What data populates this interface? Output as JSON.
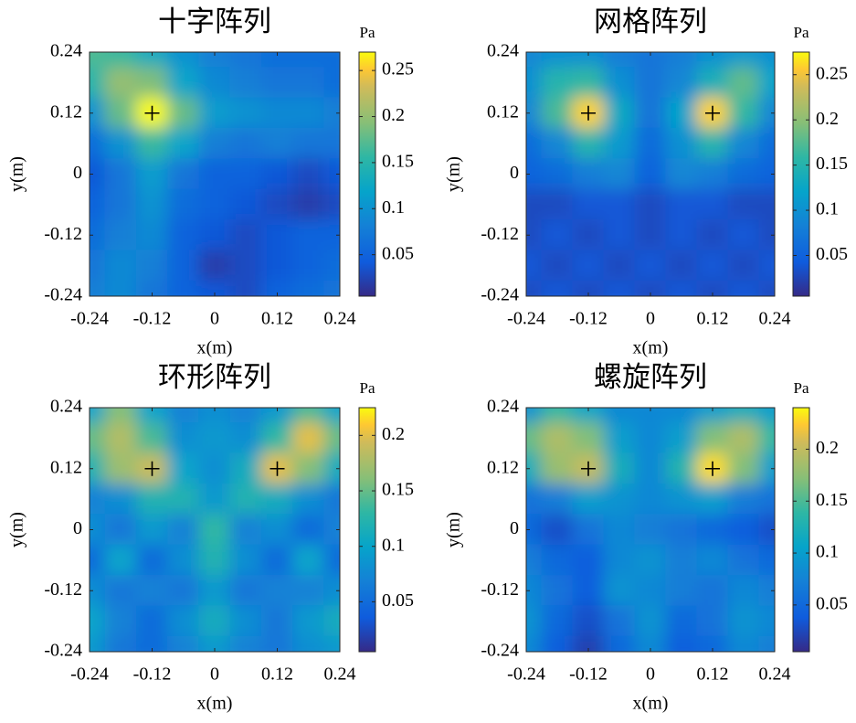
{
  "chart_data": [
    {
      "type": "heatmap",
      "title": "十字阵列",
      "xlabel": "x(m)",
      "ylabel": "y(m)",
      "colorbar_label": "Pa",
      "colormap": "parula",
      "xlim": [
        -0.24,
        0.24
      ],
      "ylim": [
        -0.24,
        0.24
      ],
      "xticks": [
        -0.24,
        -0.12,
        0,
        0.12,
        0.24
      ],
      "yticks": [
        -0.24,
        -0.12,
        0,
        0.12,
        0.24
      ],
      "clim": [
        0.005,
        0.27
      ],
      "cticks": [
        0.05,
        0.1,
        0.15,
        0.2,
        0.25
      ],
      "x": [
        -0.24,
        -0.18,
        -0.12,
        -0.06,
        0,
        0.06,
        0.12,
        0.18,
        0.24
      ],
      "y": [
        0.24,
        0.18,
        0.12,
        0.06,
        0,
        -0.06,
        -0.12,
        -0.18,
        -0.24
      ],
      "z": [
        [
          0.17,
          0.16,
          0.13,
          0.1,
          0.08,
          0.07,
          0.06,
          0.06,
          0.06
        ],
        [
          0.15,
          0.2,
          0.19,
          0.12,
          0.09,
          0.08,
          0.07,
          0.07,
          0.06
        ],
        [
          0.1,
          0.18,
          0.27,
          0.18,
          0.11,
          0.1,
          0.09,
          0.09,
          0.08
        ],
        [
          0.06,
          0.1,
          0.16,
          0.12,
          0.08,
          0.07,
          0.08,
          0.07,
          0.07
        ],
        [
          0.04,
          0.07,
          0.11,
          0.07,
          0.05,
          0.05,
          0.04,
          0.03,
          0.04
        ],
        [
          0.05,
          0.07,
          0.1,
          0.06,
          0.05,
          0.04,
          0.03,
          0.02,
          0.03
        ],
        [
          0.06,
          0.08,
          0.09,
          0.05,
          0.04,
          0.03,
          0.04,
          0.05,
          0.05
        ],
        [
          0.07,
          0.09,
          0.08,
          0.05,
          0.02,
          0.03,
          0.04,
          0.05,
          0.06
        ],
        [
          0.08,
          0.09,
          0.07,
          0.05,
          0.04,
          0.03,
          0.05,
          0.06,
          0.07
        ]
      ],
      "sources": {
        "x": [
          -0.12
        ],
        "y": [
          0.12
        ]
      }
    },
    {
      "type": "heatmap",
      "title": "网格阵列",
      "xlabel": "x(m)",
      "ylabel": "y(m)",
      "colorbar_label": "Pa",
      "colormap": "parula",
      "xlim": [
        -0.24,
        0.24
      ],
      "ylim": [
        -0.24,
        0.24
      ],
      "xticks": [
        -0.24,
        -0.12,
        0,
        0.12,
        0.24
      ],
      "yticks": [
        -0.24,
        -0.12,
        0,
        0.12,
        0.24
      ],
      "clim": [
        0.005,
        0.275
      ],
      "cticks": [
        0.05,
        0.1,
        0.15,
        0.2,
        0.25
      ],
      "x": [
        -0.24,
        -0.18,
        -0.12,
        -0.06,
        0,
        0.06,
        0.12,
        0.18,
        0.24
      ],
      "y": [
        0.24,
        0.18,
        0.12,
        0.06,
        0,
        -0.06,
        -0.12,
        -0.18,
        -0.24
      ],
      "z": [
        [
          0.09,
          0.1,
          0.1,
          0.08,
          0.07,
          0.08,
          0.1,
          0.11,
          0.1
        ],
        [
          0.1,
          0.15,
          0.16,
          0.1,
          0.07,
          0.09,
          0.14,
          0.18,
          0.12
        ],
        [
          0.09,
          0.17,
          0.26,
          0.13,
          0.07,
          0.12,
          0.26,
          0.16,
          0.09
        ],
        [
          0.06,
          0.09,
          0.15,
          0.11,
          0.06,
          0.1,
          0.15,
          0.09,
          0.06
        ],
        [
          0.05,
          0.06,
          0.08,
          0.09,
          0.05,
          0.09,
          0.08,
          0.06,
          0.05
        ],
        [
          0.03,
          0.03,
          0.04,
          0.04,
          0.03,
          0.04,
          0.04,
          0.03,
          0.03
        ],
        [
          0.03,
          0.04,
          0.03,
          0.04,
          0.03,
          0.04,
          0.03,
          0.04,
          0.03
        ],
        [
          0.04,
          0.03,
          0.04,
          0.03,
          0.04,
          0.03,
          0.04,
          0.03,
          0.04
        ],
        [
          0.03,
          0.04,
          0.03,
          0.04,
          0.03,
          0.04,
          0.03,
          0.04,
          0.03
        ]
      ],
      "sources": {
        "x": [
          -0.12,
          0.12
        ],
        "y": [
          0.12,
          0.12
        ]
      }
    },
    {
      "type": "heatmap",
      "title": "环形阵列",
      "xlabel": "x(m)",
      "ylabel": "y(m)",
      "colorbar_label": "Pa",
      "colormap": "parula",
      "xlim": [
        -0.24,
        0.24
      ],
      "ylim": [
        -0.24,
        0.24
      ],
      "xticks": [
        -0.24,
        -0.12,
        0,
        0.12,
        0.24
      ],
      "yticks": [
        -0.24,
        -0.12,
        0,
        0.12,
        0.24
      ],
      "clim": [
        0.005,
        0.225
      ],
      "cticks": [
        0.05,
        0.1,
        0.15,
        0.2
      ],
      "x": [
        -0.24,
        -0.18,
        -0.12,
        -0.06,
        0,
        0.06,
        0.12,
        0.18,
        0.24
      ],
      "y": [
        0.24,
        0.18,
        0.12,
        0.06,
        0,
        -0.06,
        -0.12,
        -0.18,
        -0.24
      ],
      "z": [
        [
          0.1,
          0.16,
          0.1,
          0.07,
          0.08,
          0.07,
          0.09,
          0.14,
          0.1
        ],
        [
          0.15,
          0.18,
          0.14,
          0.08,
          0.09,
          0.08,
          0.13,
          0.2,
          0.15
        ],
        [
          0.12,
          0.17,
          0.19,
          0.1,
          0.08,
          0.11,
          0.2,
          0.16,
          0.11
        ],
        [
          0.07,
          0.08,
          0.12,
          0.12,
          0.09,
          0.12,
          0.11,
          0.08,
          0.06
        ],
        [
          0.08,
          0.06,
          0.09,
          0.07,
          0.13,
          0.07,
          0.08,
          0.05,
          0.07
        ],
        [
          0.05,
          0.1,
          0.05,
          0.08,
          0.12,
          0.08,
          0.05,
          0.1,
          0.05
        ],
        [
          0.08,
          0.06,
          0.07,
          0.06,
          0.09,
          0.06,
          0.07,
          0.07,
          0.08
        ],
        [
          0.1,
          0.07,
          0.05,
          0.08,
          0.11,
          0.08,
          0.06,
          0.09,
          0.11
        ],
        [
          0.09,
          0.06,
          0.05,
          0.07,
          0.09,
          0.07,
          0.06,
          0.08,
          0.09
        ]
      ],
      "sources": {
        "x": [
          -0.12,
          0.12
        ],
        "y": [
          0.12,
          0.12
        ]
      }
    },
    {
      "type": "heatmap",
      "title": "螺旋阵列",
      "xlabel": "x(m)",
      "ylabel": "y(m)",
      "colorbar_label": "Pa",
      "colormap": "parula",
      "xlim": [
        -0.24,
        0.24
      ],
      "ylim": [
        -0.24,
        0.24
      ],
      "xticks": [
        -0.24,
        -0.12,
        0,
        0.12,
        0.24
      ],
      "yticks": [
        -0.24,
        -0.12,
        0,
        0.12,
        0.24
      ],
      "clim": [
        0.005,
        0.24
      ],
      "cticks": [
        0.05,
        0.1,
        0.15,
        0.2
      ],
      "x": [
        -0.24,
        -0.18,
        -0.12,
        -0.06,
        0,
        0.06,
        0.12,
        0.18,
        0.24
      ],
      "y": [
        0.24,
        0.18,
        0.12,
        0.06,
        0,
        -0.06,
        -0.12,
        -0.18,
        -0.24
      ],
      "z": [
        [
          0.09,
          0.14,
          0.11,
          0.08,
          0.08,
          0.08,
          0.1,
          0.12,
          0.1
        ],
        [
          0.16,
          0.19,
          0.17,
          0.1,
          0.08,
          0.1,
          0.17,
          0.19,
          0.14
        ],
        [
          0.12,
          0.18,
          0.2,
          0.12,
          0.08,
          0.13,
          0.23,
          0.17,
          0.1
        ],
        [
          0.06,
          0.07,
          0.1,
          0.09,
          0.08,
          0.09,
          0.1,
          0.07,
          0.06
        ],
        [
          0.05,
          0.03,
          0.06,
          0.08,
          0.07,
          0.06,
          0.05,
          0.04,
          0.03
        ],
        [
          0.07,
          0.05,
          0.04,
          0.08,
          0.09,
          0.07,
          0.08,
          0.06,
          0.05
        ],
        [
          0.08,
          0.06,
          0.04,
          0.09,
          0.08,
          0.07,
          0.06,
          0.08,
          0.07
        ],
        [
          0.09,
          0.05,
          0.03,
          0.06,
          0.09,
          0.05,
          0.06,
          0.09,
          0.08
        ],
        [
          0.08,
          0.04,
          0.02,
          0.05,
          0.08,
          0.04,
          0.05,
          0.08,
          0.07
        ]
      ],
      "sources": {
        "x": [
          -0.12,
          0.12
        ],
        "y": [
          0.12,
          0.12
        ]
      }
    }
  ]
}
